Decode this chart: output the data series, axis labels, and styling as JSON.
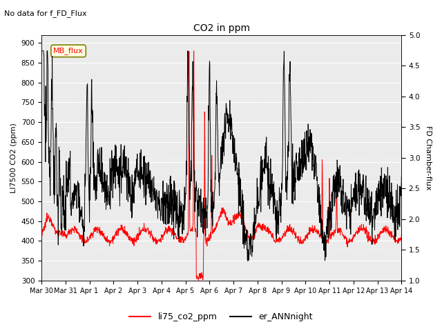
{
  "title": "CO2 in ppm",
  "subtitle": "No data for f_FD_Flux",
  "ylabel_left": "LI7500 CO2 (ppm)",
  "ylabel_right": "FD Chamber-flux",
  "ylim_left": [
    300,
    920
  ],
  "ylim_right": [
    1.0,
    5.0
  ],
  "yticks_left": [
    300,
    350,
    400,
    450,
    500,
    550,
    600,
    650,
    700,
    750,
    800,
    850,
    900
  ],
  "yticks_right": [
    1.0,
    1.5,
    2.0,
    2.5,
    3.0,
    3.5,
    4.0,
    4.5,
    5.0
  ],
  "legend_label_red": "li75_co2_ppm",
  "legend_label_black": "er_ANNnight",
  "legend_box_label": "MB_flux",
  "x_labels": [
    "Mar 30",
    "Mar 31",
    "Apr 1",
    "Apr 2",
    "Apr 3",
    "Apr 4",
    "Apr 5",
    "Apr 6",
    "Apr 7",
    "Apr 8",
    "Apr 9",
    "Apr 10",
    "Apr 11",
    "Apr 12",
    "Apr 13",
    "Apr 14"
  ],
  "background_color": "#ebebeb",
  "red_color": "#ff0000",
  "black_color": "#000000",
  "figsize": [
    6.4,
    4.8
  ],
  "dpi": 100
}
